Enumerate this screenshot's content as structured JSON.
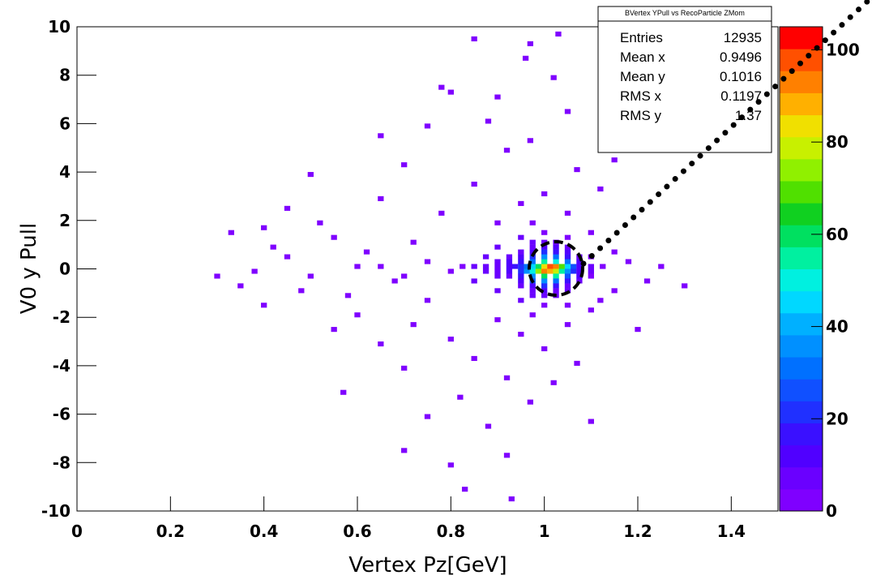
{
  "chart_data": {
    "type": "heatmap",
    "xlabel": "Vertex Pz[GeV]",
    "ylabel": "V0 y Pull",
    "xlim": [
      0,
      1.5
    ],
    "xticks": [
      0,
      0.2,
      0.4,
      0.6,
      0.8,
      1,
      1.2,
      1.4
    ],
    "ylim": [
      -10,
      10
    ],
    "yticks": [
      -10,
      -8,
      -6,
      -4,
      -2,
      0,
      2,
      4,
      6,
      8,
      10
    ],
    "zlim": [
      0,
      105
    ],
    "zticks": [
      0,
      20,
      40,
      60,
      80,
      100
    ],
    "palette": [
      "#7f00ff",
      "#6a00ff",
      "#5000ff",
      "#3a10ff",
      "#2030ff",
      "#1050ff",
      "#0070ff",
      "#0090ff",
      "#00b0ff",
      "#00d8ff",
      "#00f0e0",
      "#00f0a0",
      "#00e060",
      "#10d020",
      "#50e000",
      "#90f000",
      "#c8f000",
      "#f0e000",
      "#ffb000",
      "#ff8000",
      "#ff5000",
      "#ff0000"
    ],
    "stats_title": "BVertex YPull vs RecoParticle ZMom",
    "stats": [
      {
        "label": "Entries",
        "value": 12935
      },
      {
        "label": "Mean x",
        "value": 0.9496
      },
      {
        "label": "Mean y",
        "value": 0.1016
      },
      {
        "label": "RMS x",
        "value": 0.1197
      },
      {
        "label": "RMS y",
        "value": 1.37
      }
    ],
    "x": [
      0.9625,
      0.975,
      0.9875,
      1.0,
      1.0125,
      1.025,
      1.0375,
      1.05,
      1.0625,
      0.95,
      0.9375,
      0.925,
      0.9,
      0.875,
      0.85,
      1.075,
      1.1,
      0.975,
      0.9875,
      1.0,
      1.0125,
      1.025,
      1.0375,
      1.05,
      0.9625,
      0.95,
      0.925,
      0.9,
      0.875,
      1.0625,
      1.075,
      1.1,
      0.975,
      1.0,
      1.025,
      1.05,
      0.95,
      0.925,
      0.9,
      1.075,
      0.975,
      1.0,
      1.025,
      1.05,
      0.95,
      0.925,
      1.075,
      0.9,
      0.975,
      1.0,
      1.025,
      1.05,
      0.95,
      0.925,
      1.075,
      0.975,
      1.0,
      1.025,
      1.05,
      0.95,
      1.075,
      1.0,
      1.025,
      0.975,
      0.95,
      1.05,
      1.0,
      1.025,
      0.975,
      0.95,
      1.05,
      1.0,
      1.025,
      0.975,
      1.05,
      1.0,
      0.975,
      1.025,
      1.05,
      1.0,
      0.975,
      1.025,
      1.0,
      0.975,
      1.025,
      0.9,
      0.875,
      0.85,
      0.825,
      0.8,
      0.75,
      0.7,
      0.65,
      0.95,
      0.95,
      1.0,
      1.0,
      1.05,
      1.05,
      0.9,
      1.1,
      1.1,
      1.125,
      0.975,
      0.975,
      0.4,
      0.45,
      0.5,
      0.55,
      0.35,
      0.4,
      0.45,
      0.5,
      0.55,
      0.6,
      0.6,
      0.65,
      0.65,
      0.7,
      0.7,
      0.72,
      0.75,
      0.75,
      0.78,
      0.8,
      0.8,
      0.82,
      0.85,
      0.85,
      0.88,
      0.88,
      0.9,
      0.9,
      0.92,
      0.92,
      0.95,
      0.95,
      0.97,
      0.97,
      1.0,
      1.0,
      1.02,
      1.02,
      1.05,
      1.05,
      1.07,
      1.07,
      1.1,
      1.1,
      1.12,
      1.12,
      1.15,
      1.15,
      1.18,
      1.2,
      1.22,
      1.25,
      0.38,
      0.42,
      0.48,
      0.52,
      0.58,
      0.62,
      0.68,
      0.72,
      0.8,
      0.83,
      0.93,
      0.92,
      0.7,
      0.85,
      0.97,
      1.03,
      0.96,
      0.57,
      0.75,
      1.1,
      1.15,
      0.65,
      0.78,
      0.9,
      1.05,
      0.33,
      0.3,
      1.3
    ],
    "y": [
      0.1,
      0.1,
      0.1,
      0.1,
      0.1,
      0.1,
      0.1,
      0.1,
      0.1,
      0.1,
      0.1,
      0.1,
      0.1,
      0.1,
      0.1,
      0.1,
      0.1,
      -0.1,
      -0.1,
      -0.1,
      -0.1,
      -0.1,
      -0.1,
      -0.1,
      -0.1,
      -0.1,
      -0.1,
      -0.1,
      -0.1,
      -0.1,
      -0.1,
      -0.1,
      0.3,
      0.3,
      0.3,
      0.3,
      0.3,
      0.3,
      0.3,
      0.3,
      -0.3,
      -0.3,
      -0.3,
      -0.3,
      -0.3,
      -0.3,
      -0.3,
      -0.3,
      0.5,
      0.5,
      0.5,
      0.5,
      0.5,
      0.5,
      0.5,
      -0.5,
      -0.5,
      -0.5,
      -0.5,
      -0.5,
      -0.5,
      0.7,
      0.7,
      0.7,
      0.7,
      0.7,
      -0.7,
      -0.7,
      -0.7,
      -0.7,
      -0.7,
      0.9,
      0.9,
      0.9,
      0.9,
      -0.9,
      -0.9,
      -0.9,
      -0.9,
      1.1,
      1.1,
      1.1,
      -1.1,
      -1.1,
      -1.1,
      0.9,
      0.5,
      -0.5,
      0.1,
      -0.1,
      0.3,
      -0.3,
      0.1,
      1.3,
      -1.3,
      1.5,
      -1.5,
      1.3,
      -1.5,
      -0.9,
      0.5,
      -0.3,
      0.1,
      1.9,
      -1.9,
      1.7,
      2.5,
      3.9,
      -2.5,
      -0.7,
      -1.5,
      0.5,
      -0.3,
      1.3,
      0.1,
      -1.9,
      2.9,
      -3.1,
      4.3,
      -4.1,
      1.1,
      -1.3,
      5.9,
      2.3,
      -2.9,
      7.3,
      -5.3,
      3.5,
      -3.7,
      6.1,
      -6.5,
      1.9,
      -2.1,
      4.9,
      -4.5,
      2.7,
      -2.7,
      5.3,
      -5.5,
      3.1,
      -3.3,
      7.9,
      -4.7,
      2.3,
      -2.3,
      4.1,
      -3.9,
      1.5,
      -1.7,
      3.3,
      -1.3,
      0.7,
      -0.9,
      0.3,
      -2.5,
      -0.5,
      0.1,
      -0.1,
      0.9,
      -0.9,
      1.9,
      -1.1,
      0.7,
      -0.5,
      -2.3,
      -8.1,
      -9.1,
      -9.5,
      -7.7,
      -7.5,
      9.5,
      9.3,
      9.7,
      8.7,
      -5.1,
      -6.1,
      -6.3,
      4.5,
      5.5,
      7.5,
      7.1,
      6.5,
      1.5,
      -0.3,
      -0.7
    ],
    "values": [
      30,
      45,
      60,
      85,
      100,
      95,
      70,
      45,
      25,
      20,
      15,
      12,
      8,
      6,
      5,
      12,
      6,
      50,
      75,
      95,
      90,
      80,
      55,
      35,
      35,
      22,
      12,
      8,
      5,
      20,
      10,
      5,
      30,
      55,
      50,
      30,
      18,
      10,
      6,
      10,
      35,
      60,
      55,
      28,
      15,
      8,
      10,
      5,
      22,
      35,
      30,
      18,
      12,
      6,
      6,
      24,
      38,
      32,
      16,
      10,
      6,
      20,
      18,
      14,
      8,
      10,
      22,
      16,
      14,
      7,
      9,
      12,
      10,
      8,
      6,
      12,
      8,
      9,
      5,
      7,
      5,
      6,
      7,
      5,
      5,
      8,
      6,
      5,
      4,
      4,
      3,
      3,
      2,
      5,
      5,
      4,
      4,
      3,
      3,
      6,
      4,
      4,
      3,
      3,
      3,
      1,
      2,
      1,
      3,
      1,
      2,
      1,
      3,
      2,
      3,
      1,
      2,
      1,
      1,
      2,
      2,
      3,
      1,
      2,
      2,
      1,
      1,
      2,
      3,
      1,
      1,
      4,
      3,
      2,
      2,
      3,
      4,
      1,
      1,
      3,
      2,
      1,
      2,
      4,
      3,
      2,
      1,
      3,
      2,
      1,
      2,
      3,
      2,
      2,
      1,
      1,
      1,
      1,
      2,
      3,
      2,
      2,
      3,
      2,
      2,
      1,
      1,
      1,
      1,
      1,
      1,
      1,
      1,
      1,
      1,
      1,
      1,
      1,
      1,
      1,
      1,
      1,
      1,
      1,
      1
    ]
  }
}
